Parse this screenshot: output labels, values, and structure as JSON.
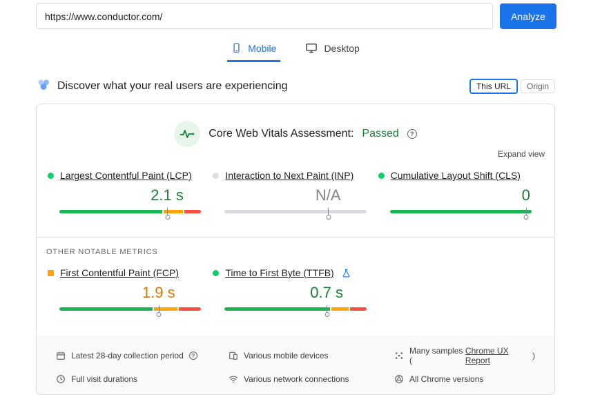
{
  "url_bar": {
    "url": "https://www.conductor.com/",
    "analyze_label": "Analyze"
  },
  "tabs": {
    "mobile_label": "Mobile",
    "desktop_label": "Desktop"
  },
  "field_header": {
    "title": "Discover what your real users are experiencing",
    "this_url_label": "This URL",
    "origin_label": "Origin"
  },
  "assessment": {
    "title": "Core Web Vitals Assessment:",
    "result": "Passed",
    "expand_label": "Expand view"
  },
  "core_metrics": [
    {
      "id": "lcp",
      "name": "Largest Contentful Paint (LCP)",
      "value": "2.1 s",
      "status": "good",
      "bullet": "green-dot",
      "bar": {
        "good": 74,
        "average": 14,
        "poor": 12,
        "marker": 76
      }
    },
    {
      "id": "inp",
      "name": "Interaction to Next Paint (INP)",
      "value": "N/A",
      "status": "na",
      "bullet": "gray-dot",
      "bar": {
        "na": 100,
        "marker": 73
      }
    },
    {
      "id": "cls",
      "name": "Cumulative Layout Shift (CLS)",
      "value": "0",
      "status": "good",
      "bullet": "green-dot",
      "bar": {
        "good": 100,
        "marker": 96
      }
    }
  ],
  "other_metrics_label": "OTHER NOTABLE METRICS",
  "other_metrics": [
    {
      "id": "fcp",
      "name": "First Contentful Paint (FCP)",
      "value": "1.9 s",
      "status": "average",
      "bullet": "orange-square",
      "bar": {
        "good": 67,
        "average": 17,
        "poor": 16,
        "marker": 70
      }
    },
    {
      "id": "ttfb",
      "name": "Time to First Byte (TTFB)",
      "value": "0.7 s",
      "status": "good",
      "bullet": "green-dot",
      "experimental": true,
      "bar": {
        "good": 76,
        "average": 12,
        "poor": 12,
        "marker": 72
      }
    }
  ],
  "footer": {
    "items": [
      {
        "icon": "calendar",
        "text": "Latest 28-day collection period",
        "help": true
      },
      {
        "icon": "devices",
        "text": "Various mobile devices"
      },
      {
        "icon": "samples",
        "prefix": "Many samples (",
        "link": "Chrome UX Report",
        "suffix": ")"
      },
      {
        "icon": "clock",
        "text": "Full visit durations"
      },
      {
        "icon": "network",
        "text": "Various network connections"
      },
      {
        "icon": "chrome",
        "text": "All Chrome versions"
      }
    ]
  },
  "colors": {
    "accent_blue": "#1a73e8",
    "good_green": "#188038",
    "bar_green": "#1cb553",
    "bar_orange": "#ffa400",
    "bar_red": "#ff4e42",
    "average_orange": "#e37400",
    "na_gray": "#80868b"
  }
}
